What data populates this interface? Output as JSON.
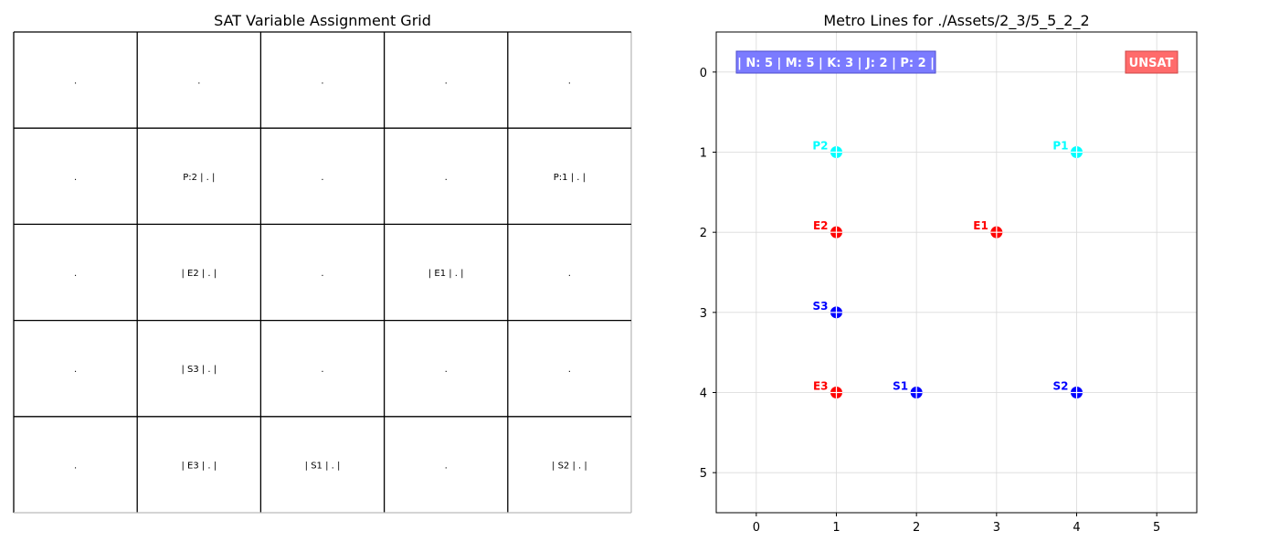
{
  "chart_data": [
    {
      "type": "table",
      "title": "SAT Variable Assignment Grid",
      "rows": [
        [
          ".",
          ".",
          ".",
          ".",
          "."
        ],
        [
          ".",
          "P:2 | . |",
          ".",
          ".",
          "P:1 | . |"
        ],
        [
          ".",
          "| E2 | . |",
          ".",
          "| E1 | . |",
          "."
        ],
        [
          ".",
          "| S3 | . |",
          ".",
          ".",
          "."
        ],
        [
          ".",
          "| E3 | . |",
          "| S1 | . |",
          ".",
          "| S2 | . |"
        ]
      ]
    },
    {
      "type": "scatter",
      "title": "Metro Lines for ./Assets/2_3/5_5_2_2",
      "xlabel": "",
      "ylabel": "",
      "xlim": [
        -0.5,
        5.5
      ],
      "ylim": [
        5.5,
        -0.5
      ],
      "y_inverted": true,
      "x_ticks": [
        0,
        1,
        2,
        3,
        4,
        5
      ],
      "y_ticks": [
        0,
        1,
        2,
        3,
        4,
        5
      ],
      "grid": true,
      "info_box": "| N: 5 | M: 5 | K: 3 | J: 2 | P: 2 |",
      "status_box": "UNSAT",
      "colors": {
        "P": "#00ffff",
        "E": "#ff0000",
        "S": "#0000ff",
        "info_box_bg": "#7b7bff",
        "status_box_bg": "#ff6b6b"
      },
      "points": [
        {
          "label": "P2",
          "x": 1,
          "y": 1,
          "group": "P"
        },
        {
          "label": "P1",
          "x": 4,
          "y": 1,
          "group": "P"
        },
        {
          "label": "E2",
          "x": 1,
          "y": 2,
          "group": "E"
        },
        {
          "label": "E1",
          "x": 3,
          "y": 2,
          "group": "E"
        },
        {
          "label": "S3",
          "x": 1,
          "y": 3,
          "group": "S"
        },
        {
          "label": "E3",
          "x": 1,
          "y": 4,
          "group": "E"
        },
        {
          "label": "S1",
          "x": 2,
          "y": 4,
          "group": "S"
        },
        {
          "label": "S2",
          "x": 4,
          "y": 4,
          "group": "S"
        }
      ]
    }
  ]
}
